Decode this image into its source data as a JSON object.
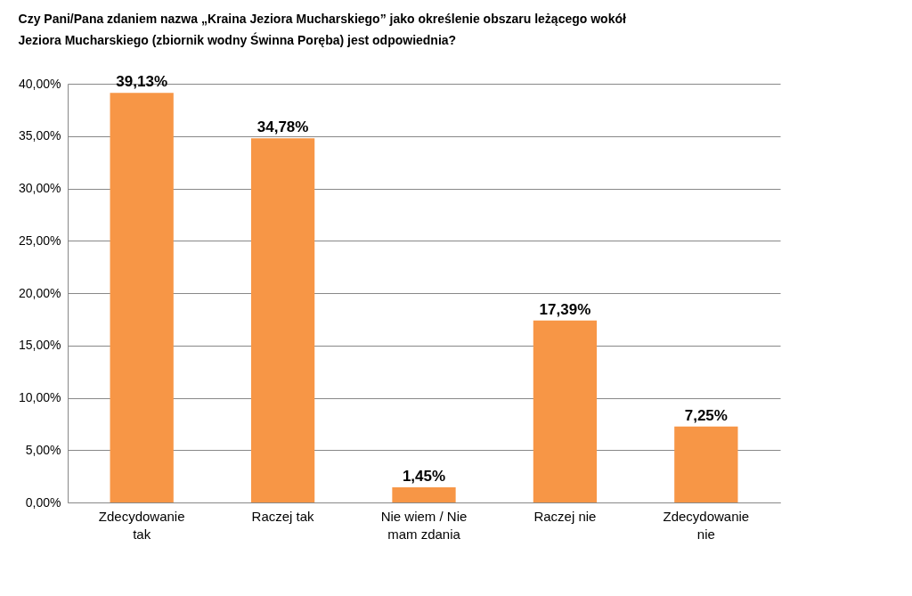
{
  "chart_data": {
    "type": "bar",
    "title": "Czy Pani/Pana zdaniem nazwa „Kraina Jeziora Mucharskiego” jako określenie obszaru leżącego wokół Jeziora Mucharskiego (zbiornik wodny Świnna Poręba) jest odpowiednia?",
    "categories": [
      "Zdecydowanie tak",
      "Raczej tak",
      "Nie wiem / Nie mam zdania",
      "Raczej nie",
      "Zdecydowanie nie"
    ],
    "values": [
      39.13,
      34.78,
      1.45,
      17.39,
      7.25
    ],
    "value_labels": [
      "39,13%",
      "34,78%",
      "1,45%",
      "17,39%",
      "7,25%"
    ],
    "color": "#f79646",
    "ylim": [
      0,
      40
    ],
    "yticks": [
      {
        "value": 0,
        "label": "0,00%"
      },
      {
        "value": 5,
        "label": "5,00%"
      },
      {
        "value": 10,
        "label": "10,00%"
      },
      {
        "value": 15,
        "label": "15,00%"
      },
      {
        "value": 20,
        "label": "20,00%"
      },
      {
        "value": 25,
        "label": "25,00%"
      },
      {
        "value": 30,
        "label": "30,00%"
      },
      {
        "value": 35,
        "label": "35,00%"
      },
      {
        "value": 40,
        "label": "40,00%"
      }
    ],
    "grid": "y"
  }
}
